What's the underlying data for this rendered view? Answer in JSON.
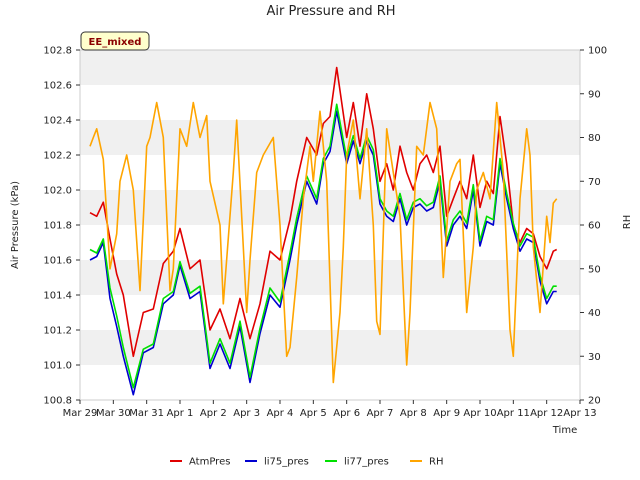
{
  "chart_data": {
    "type": "line",
    "title": "Air Pressure and RH",
    "badge": "EE_mixed",
    "xlabel": "Time",
    "ylabel_left": "Air Pressure (kPa)",
    "ylabel_right": "RH",
    "x_ticks": [
      "Mar 29",
      "Mar 30",
      "Mar 31",
      "Apr 1",
      "Apr 2",
      "Apr 3",
      "Apr 4",
      "Apr 5",
      "Apr 6",
      "Apr 7",
      "Apr 8",
      "Apr 9",
      "Apr 10",
      "Apr 11",
      "Apr 12",
      "Apr 13"
    ],
    "xlim": [
      0,
      15
    ],
    "ylim_left": [
      100.8,
      102.8
    ],
    "yticks_left": [
      "100.8",
      "101.0",
      "101.2",
      "101.4",
      "101.6",
      "101.8",
      "102.0",
      "102.2",
      "102.4",
      "102.6",
      "102.8"
    ],
    "ylim_right": [
      20,
      100
    ],
    "yticks_right": [
      "20",
      "30",
      "40",
      "50",
      "60",
      "70",
      "80",
      "90",
      "100"
    ],
    "grid": "horizontal bands",
    "legend_position": "bottom-center",
    "colors": {
      "AtmPres": "#e00000",
      "li75_pres": "#0000d0",
      "li77_pres": "#00e000",
      "RH": "#ffa500"
    },
    "series": [
      {
        "name": "AtmPres",
        "axis": "left",
        "x": [
          0.3,
          0.5,
          0.7,
          0.9,
          1.1,
          1.3,
          1.6,
          1.9,
          2.2,
          2.5,
          2.8,
          3.0,
          3.3,
          3.6,
          3.9,
          4.2,
          4.5,
          4.8,
          5.1,
          5.4,
          5.7,
          6.0,
          6.3,
          6.5,
          6.8,
          7.1,
          7.3,
          7.5,
          7.7,
          8.0,
          8.2,
          8.4,
          8.6,
          8.8,
          9.0,
          9.2,
          9.4,
          9.6,
          9.8,
          10.0,
          10.2,
          10.4,
          10.6,
          10.8,
          11.0,
          11.2,
          11.4,
          11.6,
          11.8,
          12.0,
          12.2,
          12.4,
          12.6,
          12.8,
          13.0,
          13.2,
          13.4,
          13.6,
          13.8,
          14.0,
          14.2,
          14.3
        ],
        "values": [
          101.87,
          101.85,
          101.93,
          101.72,
          101.52,
          101.4,
          101.05,
          101.3,
          101.32,
          101.58,
          101.65,
          101.78,
          101.55,
          101.6,
          101.2,
          101.32,
          101.15,
          101.38,
          101.15,
          101.35,
          101.65,
          101.6,
          101.83,
          102.05,
          102.3,
          102.2,
          102.38,
          102.42,
          102.7,
          102.3,
          102.5,
          102.25,
          102.55,
          102.35,
          102.05,
          102.15,
          102.0,
          102.25,
          102.1,
          102.0,
          102.15,
          102.2,
          102.1,
          102.25,
          101.85,
          101.95,
          102.05,
          101.95,
          102.2,
          101.9,
          102.05,
          101.98,
          102.42,
          102.15,
          101.8,
          101.7,
          101.78,
          101.75,
          101.62,
          101.55,
          101.65,
          101.66
        ]
      },
      {
        "name": "li75_pres",
        "axis": "left",
        "x": [
          0.3,
          0.5,
          0.7,
          0.9,
          1.1,
          1.3,
          1.6,
          1.9,
          2.2,
          2.5,
          2.8,
          3.0,
          3.3,
          3.6,
          3.9,
          4.2,
          4.5,
          4.8,
          5.1,
          5.4,
          5.7,
          6.0,
          6.3,
          6.5,
          6.8,
          7.1,
          7.3,
          7.5,
          7.7,
          8.0,
          8.2,
          8.4,
          8.6,
          8.8,
          9.0,
          9.2,
          9.4,
          9.6,
          9.8,
          10.0,
          10.2,
          10.4,
          10.6,
          10.8,
          11.0,
          11.2,
          11.4,
          11.6,
          11.8,
          12.0,
          12.2,
          12.4,
          12.6,
          12.8,
          13.0,
          13.2,
          13.4,
          13.6,
          13.8,
          14.0,
          14.2,
          14.3
        ],
        "values": [
          101.6,
          101.62,
          101.7,
          101.38,
          101.22,
          101.05,
          100.83,
          101.07,
          101.1,
          101.35,
          101.4,
          101.57,
          101.38,
          101.42,
          100.98,
          101.12,
          100.98,
          101.22,
          100.9,
          101.18,
          101.4,
          101.33,
          101.6,
          101.8,
          102.05,
          101.92,
          102.15,
          102.22,
          102.45,
          102.15,
          102.28,
          102.15,
          102.28,
          102.2,
          101.92,
          101.85,
          101.82,
          101.95,
          101.8,
          101.9,
          101.92,
          101.88,
          101.9,
          102.05,
          101.68,
          101.8,
          101.85,
          101.78,
          102.0,
          101.68,
          101.82,
          101.8,
          102.15,
          101.95,
          101.78,
          101.65,
          101.72,
          101.7,
          101.48,
          101.35,
          101.42,
          101.42
        ]
      },
      {
        "name": "li77_pres",
        "axis": "left",
        "x": [
          0.3,
          0.5,
          0.7,
          0.9,
          1.1,
          1.3,
          1.6,
          1.9,
          2.2,
          2.5,
          2.8,
          3.0,
          3.3,
          3.6,
          3.9,
          4.2,
          4.5,
          4.8,
          5.1,
          5.4,
          5.7,
          6.0,
          6.3,
          6.5,
          6.8,
          7.1,
          7.3,
          7.5,
          7.7,
          8.0,
          8.2,
          8.4,
          8.6,
          8.8,
          9.0,
          9.2,
          9.4,
          9.6,
          9.8,
          10.0,
          10.2,
          10.4,
          10.6,
          10.8,
          11.0,
          11.2,
          11.4,
          11.6,
          11.8,
          12.0,
          12.2,
          12.4,
          12.6,
          12.8,
          13.0,
          13.2,
          13.4,
          13.6,
          13.8,
          14.0,
          14.2,
          14.3
        ],
        "values": [
          101.66,
          101.64,
          101.72,
          101.44,
          101.28,
          101.1,
          100.87,
          101.09,
          101.12,
          101.38,
          101.42,
          101.59,
          101.41,
          101.45,
          101.01,
          101.15,
          101.01,
          101.25,
          100.93,
          101.21,
          101.44,
          101.36,
          101.64,
          101.84,
          102.08,
          101.95,
          102.18,
          102.25,
          102.49,
          102.18,
          102.31,
          102.18,
          102.31,
          102.23,
          101.95,
          101.88,
          101.85,
          101.98,
          101.83,
          101.93,
          101.95,
          101.91,
          101.93,
          102.08,
          101.71,
          101.83,
          101.88,
          101.81,
          102.03,
          101.71,
          101.85,
          101.83,
          102.18,
          101.98,
          101.81,
          101.68,
          101.75,
          101.73,
          101.51,
          101.38,
          101.45,
          101.45
        ]
      },
      {
        "name": "RH",
        "axis": "right",
        "x": [
          0.3,
          0.4,
          0.5,
          0.7,
          0.9,
          1.1,
          1.2,
          1.4,
          1.6,
          1.8,
          2.0,
          2.1,
          2.3,
          2.5,
          2.7,
          2.8,
          3.0,
          3.2,
          3.4,
          3.6,
          3.8,
          3.9,
          4.2,
          4.3,
          4.6,
          4.7,
          5.0,
          5.1,
          5.3,
          5.5,
          5.8,
          6.0,
          6.2,
          6.3,
          6.5,
          6.7,
          6.9,
          7.0,
          7.2,
          7.4,
          7.6,
          7.8,
          7.9,
          8.0,
          8.2,
          8.4,
          8.6,
          8.8,
          8.9,
          9.0,
          9.2,
          9.4,
          9.6,
          9.8,
          9.9,
          10.1,
          10.3,
          10.5,
          10.7,
          10.9,
          11.1,
          11.3,
          11.4,
          11.6,
          11.8,
          11.9,
          12.1,
          12.3,
          12.5,
          12.7,
          12.9,
          13.0,
          13.2,
          13.4,
          13.5,
          13.6,
          13.8,
          14.0,
          14.1,
          14.2,
          14.3
        ],
        "values": [
          78,
          80,
          82,
          75,
          50,
          58,
          70,
          76,
          68,
          45,
          78,
          80,
          88,
          80,
          45,
          50,
          82,
          78,
          88,
          80,
          85,
          70,
          60,
          42,
          72,
          84,
          40,
          52,
          72,
          76,
          80,
          60,
          30,
          32,
          48,
          66,
          78,
          70,
          86,
          70,
          24,
          40,
          55,
          76,
          84,
          66,
          82,
          60,
          38,
          35,
          82,
          72,
          62,
          28,
          40,
          78,
          76,
          88,
          82,
          48,
          70,
          74,
          75,
          40,
          55,
          68,
          72,
          66,
          88,
          72,
          36,
          30,
          66,
          82,
          76,
          55,
          40,
          62,
          56,
          65,
          66
        ]
      }
    ],
    "legend": [
      "AtmPres",
      "li75_pres",
      "li77_pres",
      "RH"
    ]
  }
}
